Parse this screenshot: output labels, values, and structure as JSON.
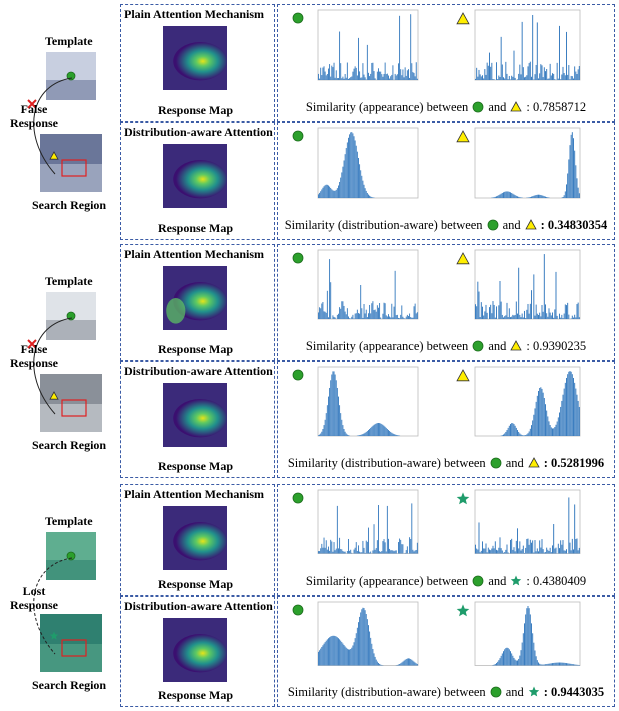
{
  "examples": [
    {
      "template": "Template",
      "response": "False Response",
      "search": "Search Region",
      "rows": [
        {
          "method": "Plain Attention Mechanism",
          "map": "Response Map",
          "caption": "Similarity (appearance) between",
          "and": "and",
          "score": ": 0.7858712",
          "bold": false,
          "marker": "triangle"
        },
        {
          "method": "Distribution-aware Attention",
          "map": "Response Map",
          "caption": "Similarity (distribution-aware) between",
          "and": "and",
          "score": ": 0.34830354",
          "bold": true,
          "marker": "triangle"
        }
      ]
    },
    {
      "template": "Template",
      "response": "False Response",
      "search": "Search Region",
      "rows": [
        {
          "method": "Plain Attention Mechanism",
          "map": "Response Map",
          "caption": "Similarity (appearance) between",
          "and": "and",
          "score": ": 0.9390235",
          "bold": false,
          "marker": "triangle"
        },
        {
          "method": "Distribution-aware Attention",
          "map": "Response Map",
          "caption": "Similarity (distribution-aware) between",
          "and": "and",
          "score": ": 0.5281996",
          "bold": true,
          "marker": "triangle"
        }
      ]
    },
    {
      "template": "Template",
      "response": "Lost Response",
      "search": "Search Region",
      "rows": [
        {
          "method": "Plain Attention Mechanism",
          "map": "Response Map",
          "caption": "Similarity (appearance) between",
          "and": "and",
          "score": ": 0.4380409",
          "bold": false,
          "marker": "star"
        },
        {
          "method": "Distribution-aware Attention",
          "map": "Response Map",
          "caption": "Similarity (distribution-aware) between",
          "and": "and",
          "score": ": 0.9443035",
          "bold": true,
          "marker": "star"
        }
      ]
    }
  ]
}
